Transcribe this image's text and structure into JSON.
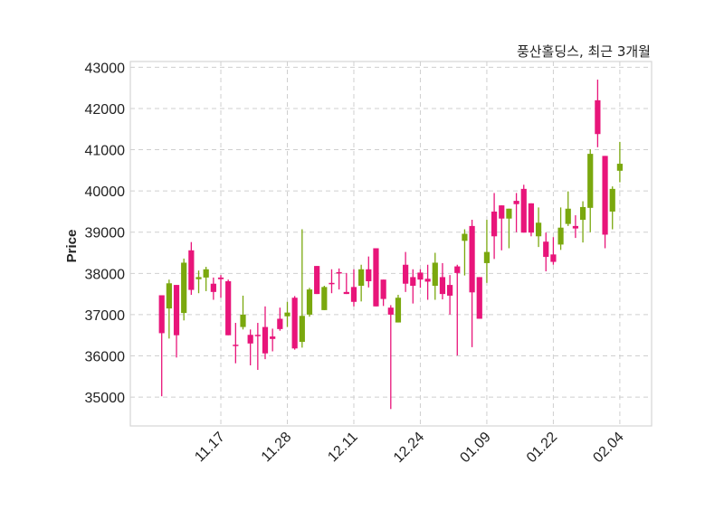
{
  "chart_data": {
    "type": "candlestick",
    "title": "풍산홀딩스, 최근 3개월",
    "xlabel": "",
    "ylabel": "Price",
    "ylim": [
      34300,
      43140
    ],
    "xlim": [
      -4.25,
      66.3
    ],
    "grid": true,
    "yticks": [
      35000,
      36000,
      37000,
      38000,
      39000,
      40000,
      41000,
      42000,
      43000
    ],
    "xticks": [
      {
        "index": 8,
        "label": "11.17"
      },
      {
        "index": 17,
        "label": "11.28"
      },
      {
        "index": 26,
        "label": "12.11"
      },
      {
        "index": 35,
        "label": "12.24"
      },
      {
        "index": 44,
        "label": "01.09"
      },
      {
        "index": 53,
        "label": "01.22"
      },
      {
        "index": 62,
        "label": "02.04"
      }
    ],
    "colors": {
      "up": "#7aa80e",
      "down": "#e8157a"
    },
    "ohlc_columns": [
      "open",
      "high",
      "low",
      "close"
    ],
    "ohlc": [
      [
        37470,
        37470,
        35020,
        36550
      ],
      [
        37150,
        37850,
        36420,
        37760
      ],
      [
        37720,
        37720,
        35960,
        36500
      ],
      [
        37040,
        38360,
        36860,
        38260
      ],
      [
        38560,
        38760,
        37480,
        37600
      ],
      [
        37860,
        38070,
        37520,
        37910
      ],
      [
        37900,
        38160,
        37570,
        38100
      ],
      [
        37750,
        37900,
        37360,
        37550
      ],
      [
        37900,
        37960,
        37410,
        37860
      ],
      [
        37810,
        37850,
        36500,
        36500
      ],
      [
        36270,
        36800,
        35820,
        36250
      ],
      [
        36700,
        37460,
        36640,
        37000
      ],
      [
        36510,
        36640,
        35770,
        36300
      ],
      [
        36510,
        36800,
        35660,
        36490
      ],
      [
        36700,
        37200,
        35920,
        36060
      ],
      [
        36470,
        36660,
        36110,
        36410
      ],
      [
        36900,
        37170,
        36610,
        36650
      ],
      [
        36960,
        37310,
        36700,
        37050
      ],
      [
        37410,
        37450,
        36150,
        36180
      ],
      [
        36340,
        39070,
        36200,
        36970
      ],
      [
        37000,
        37650,
        36950,
        37610
      ],
      [
        38180,
        38180,
        37500,
        37500
      ],
      [
        37110,
        37700,
        37110,
        37670
      ],
      [
        37770,
        38100,
        37520,
        37750
      ],
      [
        38030,
        38120,
        37610,
        38010
      ],
      [
        37550,
        38010,
        37500,
        37500
      ],
      [
        37670,
        38100,
        37200,
        37310
      ],
      [
        37700,
        38210,
        37320,
        38100
      ],
      [
        38100,
        38410,
        37660,
        37810
      ],
      [
        38610,
        38610,
        37200,
        37200
      ],
      [
        37850,
        37850,
        37210,
        37380
      ],
      [
        37170,
        37230,
        34710,
        37000
      ],
      [
        36810,
        37480,
        36810,
        37410
      ],
      [
        38210,
        38520,
        37550,
        37750
      ],
      [
        37910,
        38100,
        37270,
        37700
      ],
      [
        38020,
        38100,
        37650,
        37850
      ],
      [
        37870,
        38210,
        37360,
        37800
      ],
      [
        37700,
        38500,
        37360,
        38260
      ],
      [
        37910,
        38250,
        37370,
        37500
      ],
      [
        37720,
        37960,
        37000,
        37460
      ],
      [
        38170,
        38210,
        36010,
        38010
      ],
      [
        38790,
        39070,
        37950,
        38960
      ],
      [
        39150,
        39300,
        36210,
        37540
      ],
      [
        37910,
        37910,
        36900,
        36900
      ],
      [
        38250,
        39300,
        37770,
        38520
      ],
      [
        39500,
        39950,
        38350,
        38900
      ],
      [
        39650,
        39650,
        38560,
        39330
      ],
      [
        39330,
        39570,
        38610,
        39570
      ],
      [
        39760,
        39950,
        39000,
        39680
      ],
      [
        40050,
        40150,
        38990,
        38990
      ],
      [
        39700,
        39700,
        38900,
        38990
      ],
      [
        38900,
        39600,
        38640,
        39230
      ],
      [
        38770,
        38990,
        38050,
        38400
      ],
      [
        38460,
        38880,
        38210,
        38280
      ],
      [
        38700,
        39600,
        38570,
        39110
      ],
      [
        39200,
        39990,
        39150,
        39570
      ],
      [
        39150,
        39410,
        38860,
        39090
      ],
      [
        39300,
        39750,
        38750,
        39610
      ],
      [
        39590,
        41010,
        39000,
        40900
      ],
      [
        42200,
        42700,
        41060,
        41380
      ],
      [
        40850,
        40850,
        38610,
        38940
      ],
      [
        39500,
        40110,
        39070,
        40050
      ],
      [
        40490,
        41190,
        40210,
        40660
      ]
    ]
  }
}
